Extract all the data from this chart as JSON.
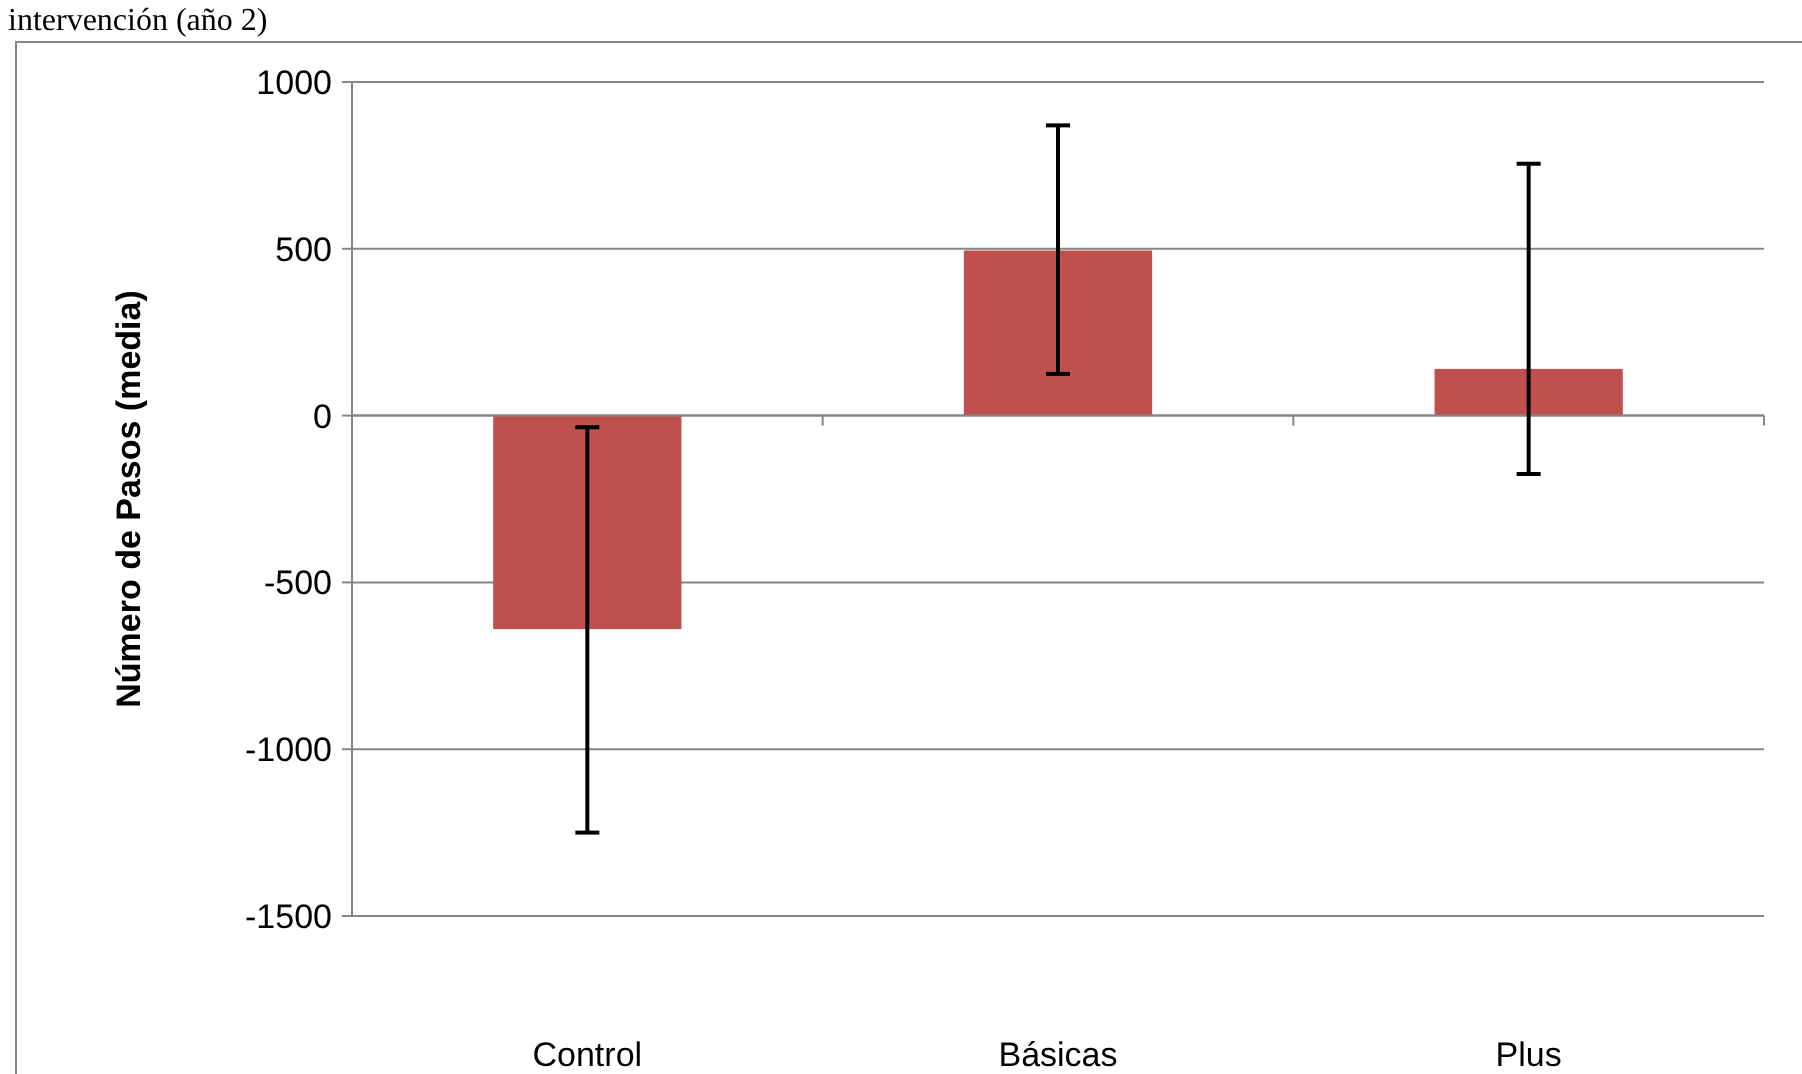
{
  "chart_data": {
    "type": "bar",
    "title": "intervención (año 2)",
    "ylabel": "Número de Pasos (media)",
    "categories": [
      "Control",
      "Básicas",
      "Plus"
    ],
    "values": [
      -640,
      495,
      140
    ],
    "errors": [
      [
        -1250,
        -35
      ],
      [
        125,
        870
      ],
      [
        -175,
        755
      ]
    ],
    "color": "#c0504d",
    "ylim": [
      -1500,
      1000
    ],
    "yticks": [
      -1500,
      -1000,
      -500,
      0,
      500,
      1000
    ],
    "grid": "y"
  }
}
